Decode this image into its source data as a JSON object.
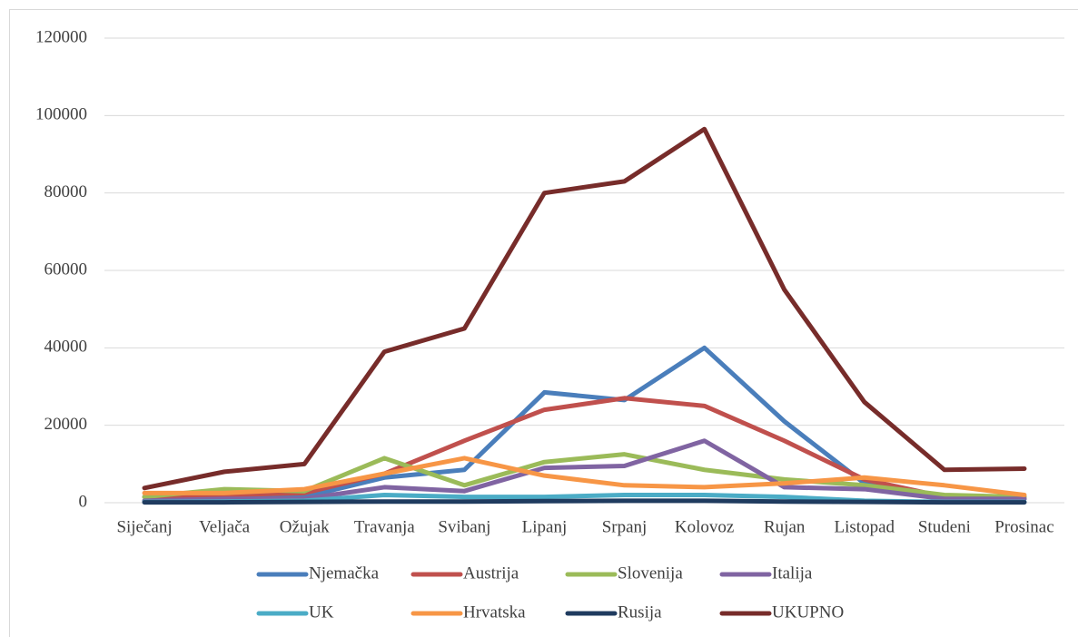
{
  "chart_data": {
    "type": "line",
    "categories": [
      "Siječanj",
      "Veljača",
      "Ožujak",
      "Travanja",
      "Svibanj",
      "Lipanj",
      "Srpanj",
      "Kolovoz",
      "Rujan",
      "Listopad",
      "Studeni",
      "Prosinac"
    ],
    "series": [
      {
        "name": "Njemačka",
        "color": "#4a7ebb",
        "values": [
          500,
          1000,
          1500,
          6500,
          8500,
          28500,
          26500,
          40000,
          21000,
          5000,
          1000,
          1000
        ]
      },
      {
        "name": "Austrija",
        "color": "#c0504d",
        "values": [
          1500,
          2000,
          2500,
          7500,
          16000,
          24000,
          27000,
          25000,
          16000,
          6000,
          1500,
          1500
        ]
      },
      {
        "name": "Slovenija",
        "color": "#9bbb59",
        "values": [
          1500,
          3500,
          3000,
          11500,
          4500,
          10500,
          12500,
          8500,
          6000,
          4500,
          2000,
          1500
        ]
      },
      {
        "name": "Italija",
        "color": "#8064a2",
        "values": [
          500,
          1000,
          1000,
          4000,
          3000,
          9000,
          9500,
          16000,
          4000,
          3500,
          1000,
          1000
        ]
      },
      {
        "name": "UK",
        "color": "#4bacc6",
        "values": [
          200,
          300,
          500,
          2000,
          1500,
          1500,
          2000,
          2000,
          1500,
          500,
          200,
          200
        ]
      },
      {
        "name": "Hrvatska",
        "color": "#f79646",
        "values": [
          2500,
          2500,
          3500,
          7500,
          11500,
          7000,
          4500,
          4000,
          5000,
          6500,
          4500,
          2000
        ]
      },
      {
        "name": "Rusija",
        "color": "#1f3b5f",
        "values": [
          100,
          100,
          200,
          300,
          300,
          400,
          500,
          500,
          300,
          200,
          100,
          100
        ]
      },
      {
        "name": "UKUPNO",
        "color": "#772c2a",
        "values": [
          3800,
          8000,
          10000,
          39000,
          45000,
          80000,
          83000,
          96500,
          55000,
          26000,
          8500,
          8800
        ]
      }
    ],
    "ylim": [
      0,
      120000
    ],
    "yticks": [
      0,
      20000,
      40000,
      60000,
      80000,
      100000,
      120000
    ],
    "grid": true,
    "legend": "bottom"
  }
}
